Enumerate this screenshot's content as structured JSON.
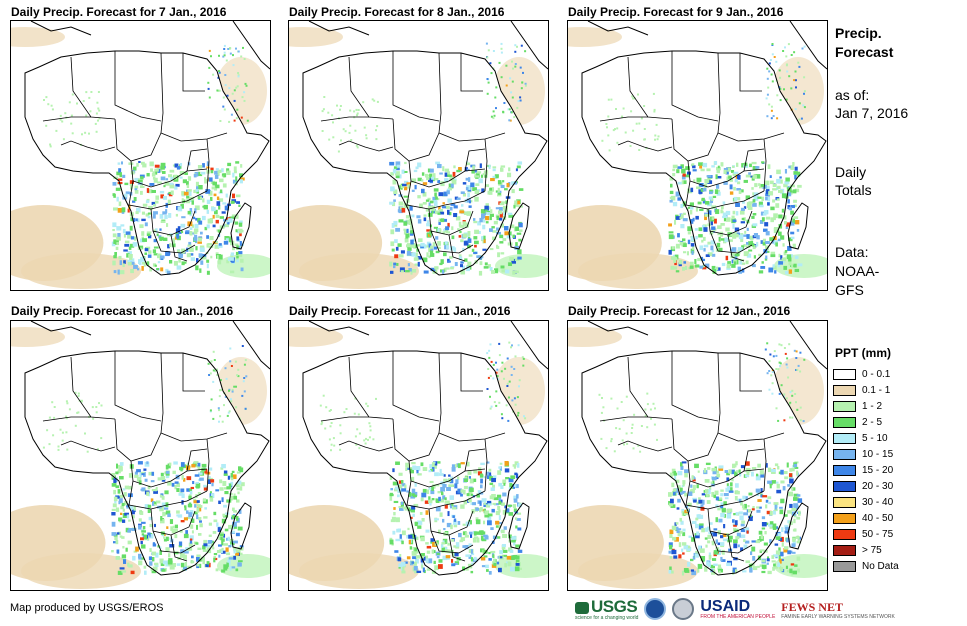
{
  "panels": [
    {
      "title": "Daily Precip. Forecast for 7 Jan., 2016"
    },
    {
      "title": "Daily Precip. Forecast for 8 Jan., 2016"
    },
    {
      "title": "Daily Precip. Forecast for 9 Jan., 2016"
    },
    {
      "title": "Daily Precip. Forecast for 10 Jan., 2016"
    },
    {
      "title": "Daily Precip. Forecast for 11 Jan., 2016"
    },
    {
      "title": "Daily Precip. Forecast for 12 Jan., 2016"
    }
  ],
  "sidebar": {
    "title_line1": "Precip.",
    "title_line2": "Forecast",
    "asof_label": "as of:",
    "asof_date": "Jan 7, 2016",
    "daily_line1": "Daily",
    "daily_line2": "Totals",
    "data_line1": "Data:",
    "data_line2": "NOAA-",
    "data_line3": "GFS"
  },
  "legend": {
    "title": "PPT (mm)",
    "items": [
      {
        "label": "0 - 0.1",
        "color": "#ffffff"
      },
      {
        "label": "0.1 - 1",
        "color": "#ecd7b2"
      },
      {
        "label": "1 - 2",
        "color": "#b6f2b0"
      },
      {
        "label": "2 - 5",
        "color": "#66dd66"
      },
      {
        "label": "5 - 10",
        "color": "#b2ecf7"
      },
      {
        "label": "10 - 15",
        "color": "#76b4ef"
      },
      {
        "label": "15 - 20",
        "color": "#3e86e8"
      },
      {
        "label": "20 - 30",
        "color": "#1e56d2"
      },
      {
        "label": "30 - 40",
        "color": "#fbe481"
      },
      {
        "label": "40 - 50",
        "color": "#f3a01a"
      },
      {
        "label": "50 - 75",
        "color": "#ee3a12"
      },
      {
        "label": "> 75",
        "color": "#a41d14"
      },
      {
        "label": "No Data",
        "color": "#999999"
      }
    ]
  },
  "footer": {
    "credit": "Map produced by USGS/EROS",
    "logo_usgs": "USGS",
    "logo_usgs_tagline": "science for a changing world",
    "logo_usaid": "USAID",
    "logo_usaid_tagline": "FROM THE AMERICAN PEOPLE",
    "logo_fews": "FEWS NET",
    "logo_fews_tagline": "FAMINE EARLY WARNING SYSTEMS NETWORK"
  }
}
